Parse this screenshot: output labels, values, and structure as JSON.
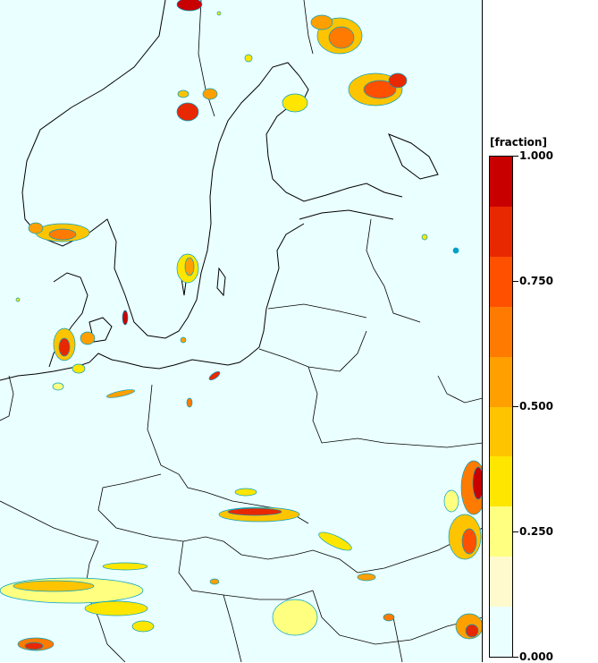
{
  "legend": {
    "title": "[fraction]",
    "ticks": [
      "1.000",
      "0.750",
      "0.500",
      "0.250",
      "0.000"
    ],
    "colors": [
      "#eaffff",
      "#fffacd",
      "#ffff80",
      "#ffe600",
      "#ffc400",
      "#ff9f00",
      "#ff7a00",
      "#ff5000",
      "#e82800",
      "#c80000"
    ]
  },
  "map": {
    "region": "Baltic Sea and Central/Eastern Europe",
    "background_color": "#eaffff",
    "coastline_color": "#000000",
    "contour_outline_color": "#00a0c8"
  }
}
